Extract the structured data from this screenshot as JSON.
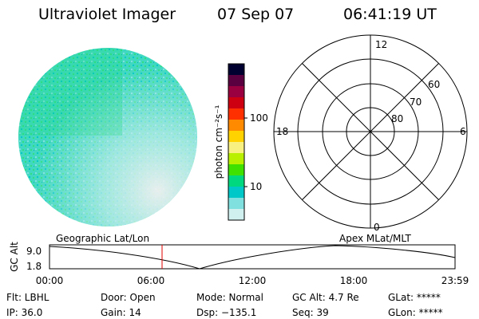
{
  "header": {
    "title": "Ultraviolet Imager",
    "date": "07 Sep 07",
    "time": "06:41:19 UT"
  },
  "colorbar": {
    "unit_label": "photon cm⁻²s⁻¹",
    "ticks": [
      "100",
      "10"
    ],
    "colors": [
      "#000030",
      "#5a0040",
      "#9a0040",
      "#cc0010",
      "#ff3000",
      "#ff8a00",
      "#ffd200",
      "#f8f080",
      "#b8f000",
      "#40e000",
      "#00d880",
      "#00c8c8",
      "#80e0e0",
      "#d0f0f0"
    ]
  },
  "polar": {
    "top_label": "12",
    "bottom_label": "0",
    "left_label": "18",
    "right_label": "6",
    "ring_labels": [
      "60",
      "70",
      "80"
    ]
  },
  "timeline": {
    "left_label": "Geographic Lat/Lon",
    "right_label": "Apex MLat/MLT",
    "axis_title": "GC Alt",
    "y_top": "9.0",
    "y_bottom": "1.8",
    "x_ticks": [
      "00:00",
      "06:00",
      "12:00",
      "18:00",
      "23:59"
    ]
  },
  "footer": {
    "filter": "Flt: LBHL",
    "ip": "IP: 36.0",
    "door": "Door: Open",
    "gain": "Gain: 14",
    "mode": "Mode: Normal",
    "dsp": "Dsp: −135.1",
    "gc_alt": "GC Alt: 4.7 Re",
    "seq": "Seq: 39",
    "glat": "GLat: *****",
    "glon": "GLon: *****"
  },
  "chart_data": {
    "type": "line",
    "x": [
      "00:00",
      "06:00",
      "12:00",
      "18:00",
      "23:59"
    ],
    "series": [],
    "ylabel": "GC Alt",
    "ylim": [
      1.8,
      9.0
    ],
    "current_time": "06:41"
  }
}
